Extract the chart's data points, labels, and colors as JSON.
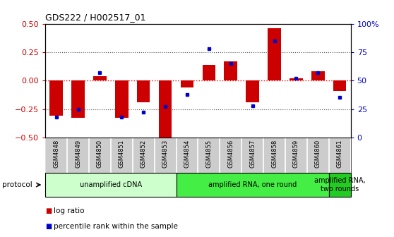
{
  "title": "GDS222 / H002517_01",
  "samples": [
    "GSM4848",
    "GSM4849",
    "GSM4850",
    "GSM4851",
    "GSM4852",
    "GSM4853",
    "GSM4854",
    "GSM4855",
    "GSM4856",
    "GSM4857",
    "GSM4858",
    "GSM4859",
    "GSM4860",
    "GSM4861"
  ],
  "log_ratio": [
    -0.31,
    -0.33,
    0.04,
    -0.33,
    -0.19,
    -0.5,
    -0.06,
    0.14,
    0.17,
    -0.19,
    0.46,
    0.02,
    0.08,
    -0.09
  ],
  "percentile_rank": [
    18,
    25,
    57,
    18,
    22,
    27,
    38,
    78,
    65,
    28,
    85,
    52,
    57,
    35
  ],
  "ylim": [
    -0.5,
    0.5
  ],
  "y2lim": [
    0,
    100
  ],
  "yticks": [
    -0.5,
    -0.25,
    0,
    0.25,
    0.5
  ],
  "y2ticks": [
    0,
    25,
    50,
    75,
    100
  ],
  "bar_color": "#cc0000",
  "dot_color": "#0000cc",
  "left_ytick_color": "#cc0000",
  "right_ytick_color": "#0000cc",
  "protocol_groups": [
    {
      "label": "unamplified cDNA",
      "start": 0,
      "end": 5,
      "color": "#ccffcc"
    },
    {
      "label": "amplified RNA, one round",
      "start": 6,
      "end": 12,
      "color": "#44ee44"
    },
    {
      "label": "amplified RNA,\ntwo rounds",
      "start": 13,
      "end": 13,
      "color": "#22cc22"
    }
  ],
  "legend_items": [
    {
      "label": "log ratio",
      "color": "#cc0000"
    },
    {
      "label": "percentile rank within the sample",
      "color": "#0000cc"
    }
  ],
  "protocol_label": "protocol",
  "bar_width": 0.6,
  "sample_bg_color": "#cccccc",
  "plot_bg_color": "#ffffff",
  "grid_color": "#aaaaaa"
}
